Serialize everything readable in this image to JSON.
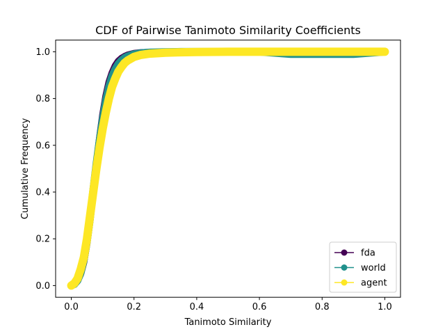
{
  "chart_data": {
    "type": "line",
    "title": "CDF of Pairwise Tanimoto Similarity Coefficients",
    "xlabel": "Tanimoto Similarity",
    "ylabel": "Cumulative Frequency",
    "xlim": [
      -0.05,
      1.05
    ],
    "ylim": [
      -0.05,
      1.05
    ],
    "xticks": [
      0.0,
      0.2,
      0.4,
      0.6,
      0.8,
      1.0
    ],
    "xtick_labels": [
      "0.0",
      "0.2",
      "0.4",
      "0.6",
      "0.8",
      "1.0"
    ],
    "yticks": [
      0.0,
      0.2,
      0.4,
      0.6,
      0.8,
      1.0
    ],
    "ytick_labels": [
      "0.0",
      "0.2",
      "0.4",
      "0.6",
      "0.8",
      "1.0"
    ],
    "grid": false,
    "legend_position": "lower-right",
    "marker": "circle",
    "series": [
      {
        "name": "fda",
        "color": "#440154",
        "x": [
          0.0,
          0.01,
          0.02,
          0.03,
          0.04,
          0.05,
          0.06,
          0.07,
          0.08,
          0.09,
          0.1,
          0.11,
          0.12,
          0.13,
          0.14,
          0.15,
          0.16,
          0.17,
          0.18,
          0.2,
          0.22,
          0.25,
          0.3,
          0.35,
          0.4,
          0.5,
          0.6,
          0.7,
          0.8,
          0.9,
          1.0
        ],
        "y": [
          0.0,
          0.005,
          0.02,
          0.05,
          0.1,
          0.18,
          0.28,
          0.4,
          0.52,
          0.63,
          0.73,
          0.81,
          0.87,
          0.91,
          0.94,
          0.96,
          0.972,
          0.98,
          0.986,
          0.993,
          0.996,
          0.998,
          0.999,
          1.0,
          1.0,
          1.0,
          1.0,
          1.0,
          1.0,
          1.0,
          1.0
        ]
      },
      {
        "name": "world",
        "color": "#21918c",
        "x": [
          0.0,
          0.01,
          0.02,
          0.03,
          0.04,
          0.05,
          0.06,
          0.07,
          0.08,
          0.09,
          0.1,
          0.11,
          0.12,
          0.13,
          0.14,
          0.15,
          0.16,
          0.17,
          0.18,
          0.2,
          0.22,
          0.25,
          0.3,
          0.35,
          0.4,
          0.5,
          0.6,
          0.7,
          0.8,
          0.9,
          1.0
        ],
        "y": [
          0.0,
          0.006,
          0.022,
          0.055,
          0.11,
          0.19,
          0.29,
          0.41,
          0.52,
          0.62,
          0.71,
          0.79,
          0.85,
          0.895,
          0.925,
          0.948,
          0.963,
          0.974,
          0.981,
          0.99,
          0.994,
          0.997,
          0.999,
          1.0,
          1.0,
          1.0,
          1.0,
          0.99,
          0.99,
          0.99,
          1.0
        ]
      },
      {
        "name": "agent",
        "color": "#fde725",
        "x": [
          0.0,
          0.01,
          0.02,
          0.03,
          0.04,
          0.05,
          0.06,
          0.07,
          0.08,
          0.09,
          0.1,
          0.11,
          0.12,
          0.13,
          0.14,
          0.15,
          0.16,
          0.17,
          0.18,
          0.2,
          0.22,
          0.25,
          0.3,
          0.35,
          0.4,
          0.5,
          0.6,
          0.7,
          0.8,
          0.9,
          1.0
        ],
        "y": [
          0.0,
          0.01,
          0.03,
          0.07,
          0.12,
          0.2,
          0.3,
          0.4,
          0.5,
          0.59,
          0.67,
          0.74,
          0.8,
          0.85,
          0.885,
          0.915,
          0.935,
          0.952,
          0.963,
          0.978,
          0.986,
          0.992,
          0.996,
          0.998,
          0.999,
          1.0,
          1.0,
          1.0,
          1.0,
          1.0,
          1.0
        ]
      }
    ]
  }
}
